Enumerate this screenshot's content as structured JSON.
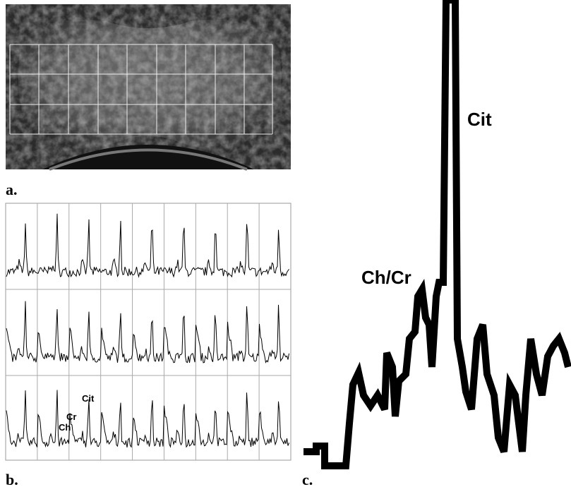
{
  "panels": [
    {
      "label": "a."
    },
    {
      "label": "b.",
      "annotations": [
        "Cit",
        "Cr",
        "Ch"
      ]
    },
    {
      "label": "c.",
      "annotations": [
        "Cit",
        "Ch/Cr"
      ]
    }
  ]
}
